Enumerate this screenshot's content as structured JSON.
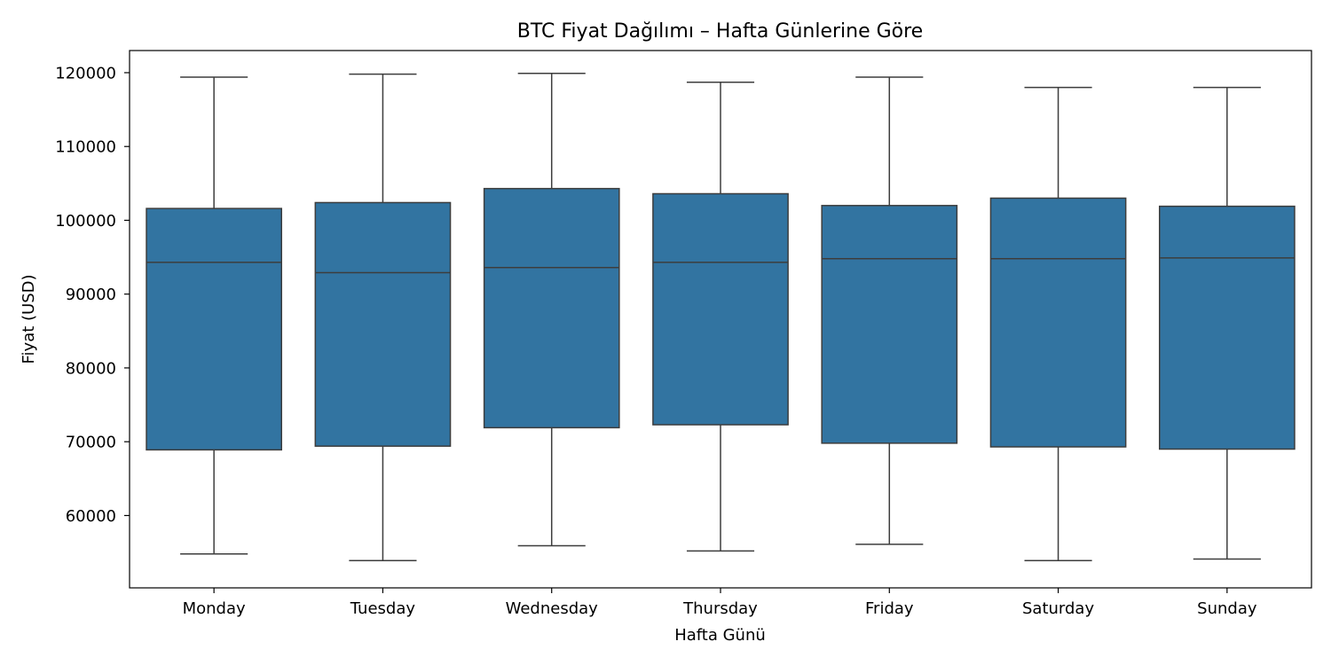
{
  "chart_data": {
    "type": "box",
    "title": "BTC Fiyat Dağılımı – Hafta Günlerine Göre",
    "xlabel": "Hafta Günü",
    "ylabel": "Fiyat (USD)",
    "ylim": [
      50200,
      123000
    ],
    "yticks": [
      60000,
      70000,
      80000,
      90000,
      100000,
      110000,
      120000
    ],
    "grid": false,
    "legend": "none",
    "box_color": "#3274a1",
    "line_color": "#3d3d3d",
    "categories": [
      "Monday",
      "Tuesday",
      "Wednesday",
      "Thursday",
      "Friday",
      "Saturday",
      "Sunday"
    ],
    "boxes": [
      {
        "min": 54800,
        "q1": 68900,
        "median": 94300,
        "q3": 101600,
        "max": 119400
      },
      {
        "min": 53900,
        "q1": 69400,
        "median": 92900,
        "q3": 102400,
        "max": 119800
      },
      {
        "min": 55900,
        "q1": 71900,
        "median": 93600,
        "q3": 104300,
        "max": 119900
      },
      {
        "min": 55200,
        "q1": 72300,
        "median": 94300,
        "q3": 103600,
        "max": 118700
      },
      {
        "min": 56100,
        "q1": 69800,
        "median": 94800,
        "q3": 102000,
        "max": 119400
      },
      {
        "min": 53900,
        "q1": 69300,
        "median": 94800,
        "q3": 103000,
        "max": 118000
      },
      {
        "min": 54100,
        "q1": 69000,
        "median": 94900,
        "q3": 101900,
        "max": 118000
      }
    ]
  }
}
